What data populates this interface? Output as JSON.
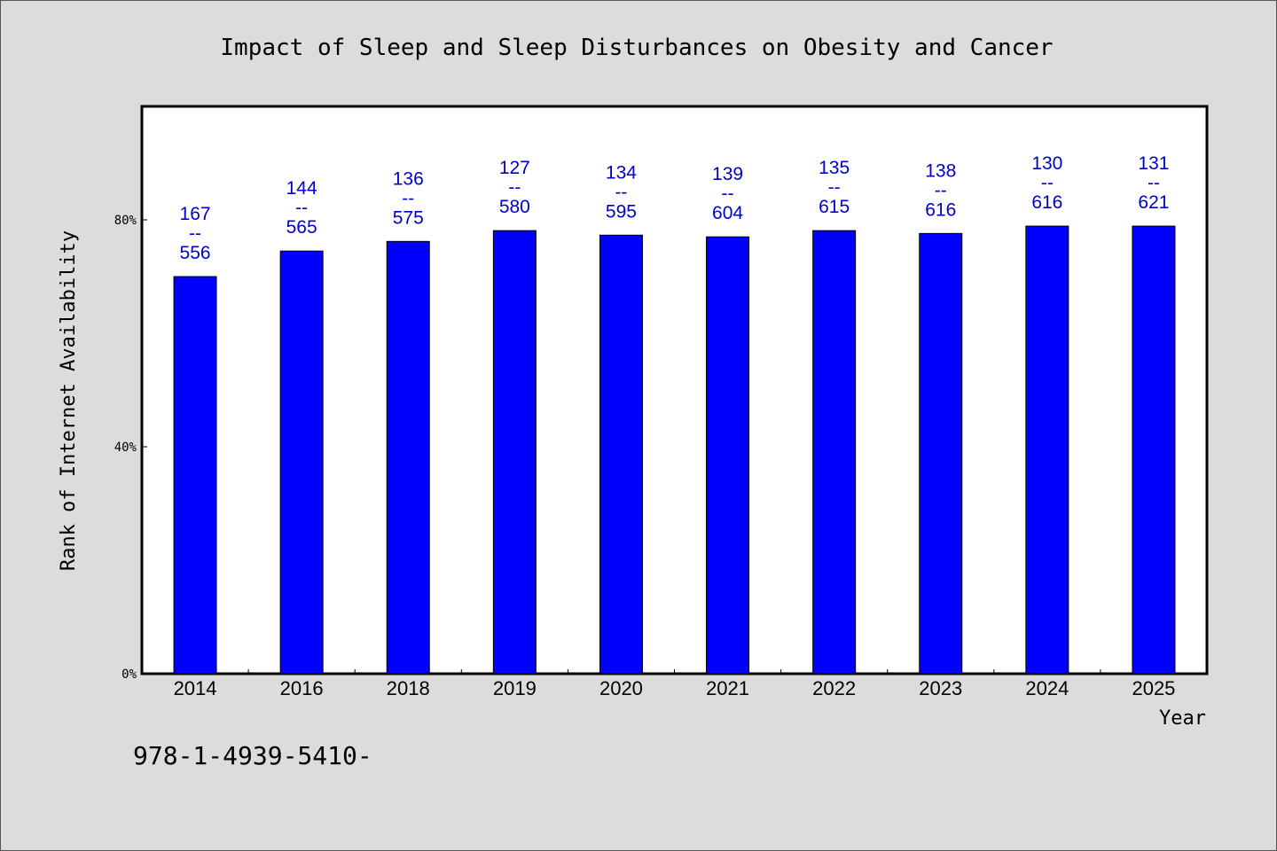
{
  "chart_data": {
    "type": "bar",
    "title": "Impact of Sleep and Sleep Disturbances on Obesity and Cancer",
    "xlabel": "Year",
    "ylabel": "Rank of Internet Availability",
    "categories": [
      "2014",
      "2016",
      "2018",
      "2019",
      "2020",
      "2021",
      "2022",
      "2023",
      "2024",
      "2025"
    ],
    "values": [
      70,
      74.5,
      76.2,
      78.1,
      77.3,
      77.0,
      78.1,
      77.6,
      78.9,
      78.9
    ],
    "value_unit": "%",
    "bar_labels": [
      {
        "top": "167",
        "sep": "--",
        "bottom": "556"
      },
      {
        "top": "144",
        "sep": "--",
        "bottom": "565"
      },
      {
        "top": "136",
        "sep": "--",
        "bottom": "575"
      },
      {
        "top": "127",
        "sep": "--",
        "bottom": "580"
      },
      {
        "top": "134",
        "sep": "--",
        "bottom": "595"
      },
      {
        "top": "139",
        "sep": "--",
        "bottom": "604"
      },
      {
        "top": "135",
        "sep": "--",
        "bottom": "615"
      },
      {
        "top": "138",
        "sep": "--",
        "bottom": "616"
      },
      {
        "top": "130",
        "sep": "--",
        "bottom": "616"
      },
      {
        "top": "131",
        "sep": "--",
        "bottom": "621"
      }
    ],
    "yticks": [
      {
        "value": 0,
        "label": "0%"
      },
      {
        "value": 40,
        "label": "40%"
      },
      {
        "value": 80,
        "label": "80%"
      }
    ],
    "ylim": [
      0,
      100
    ],
    "grid": false,
    "colors": {
      "bar": "#0000ff",
      "label": "#0000cc",
      "plot_bg": "#ffffff",
      "page_bg": "#dcdcdc"
    }
  },
  "footnote": "978-1-4939-5410-"
}
